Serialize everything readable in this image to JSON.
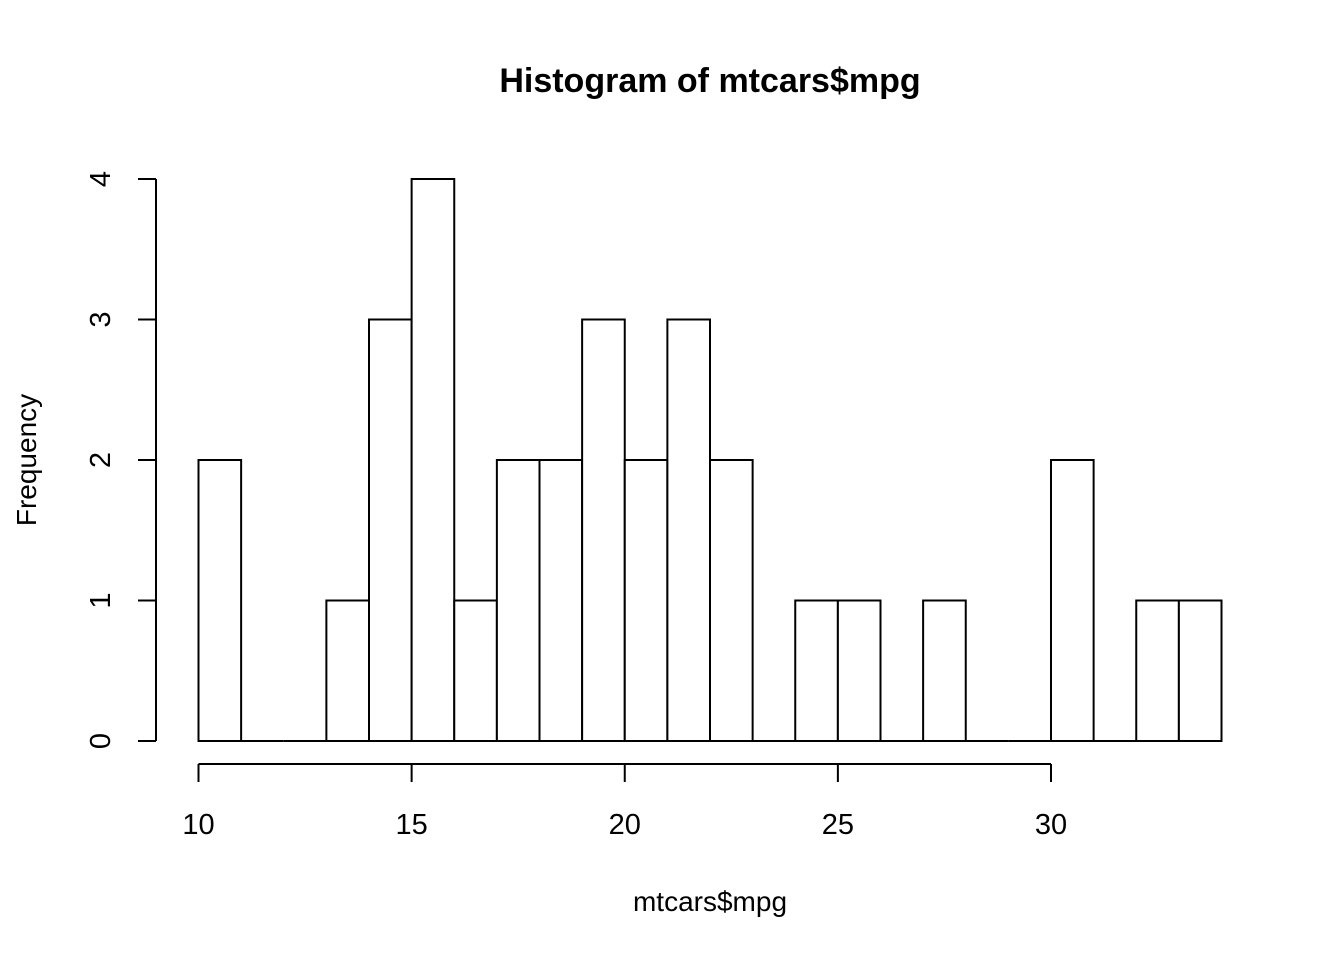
{
  "chart_data": {
    "type": "bar",
    "title": "Histogram of mtcars$mpg",
    "xlabel": "mtcars$mpg",
    "ylabel": "Frequency",
    "bin_width": 1,
    "bins": [
      {
        "start": 10,
        "end": 11,
        "count": 2
      },
      {
        "start": 11,
        "end": 12,
        "count": 0
      },
      {
        "start": 12,
        "end": 13,
        "count": 0
      },
      {
        "start": 13,
        "end": 14,
        "count": 1
      },
      {
        "start": 14,
        "end": 15,
        "count": 3
      },
      {
        "start": 15,
        "end": 16,
        "count": 4
      },
      {
        "start": 16,
        "end": 17,
        "count": 1
      },
      {
        "start": 17,
        "end": 18,
        "count": 2
      },
      {
        "start": 18,
        "end": 19,
        "count": 2
      },
      {
        "start": 19,
        "end": 20,
        "count": 3
      },
      {
        "start": 20,
        "end": 21,
        "count": 2
      },
      {
        "start": 21,
        "end": 22,
        "count": 3
      },
      {
        "start": 22,
        "end": 23,
        "count": 2
      },
      {
        "start": 23,
        "end": 24,
        "count": 0
      },
      {
        "start": 24,
        "end": 25,
        "count": 1
      },
      {
        "start": 25,
        "end": 26,
        "count": 1
      },
      {
        "start": 26,
        "end": 27,
        "count": 0
      },
      {
        "start": 27,
        "end": 28,
        "count": 1
      },
      {
        "start": 28,
        "end": 29,
        "count": 0
      },
      {
        "start": 29,
        "end": 30,
        "count": 0
      },
      {
        "start": 30,
        "end": 31,
        "count": 2
      },
      {
        "start": 31,
        "end": 32,
        "count": 0
      },
      {
        "start": 32,
        "end": 33,
        "count": 1
      },
      {
        "start": 33,
        "end": 34,
        "count": 1
      }
    ],
    "xlim": [
      10,
      34
    ],
    "ylim": [
      0,
      4
    ],
    "x_ticks": [
      10,
      15,
      20,
      25,
      30
    ],
    "y_ticks": [
      0,
      1,
      2,
      3,
      4
    ],
    "grid": false,
    "legend": "none"
  }
}
